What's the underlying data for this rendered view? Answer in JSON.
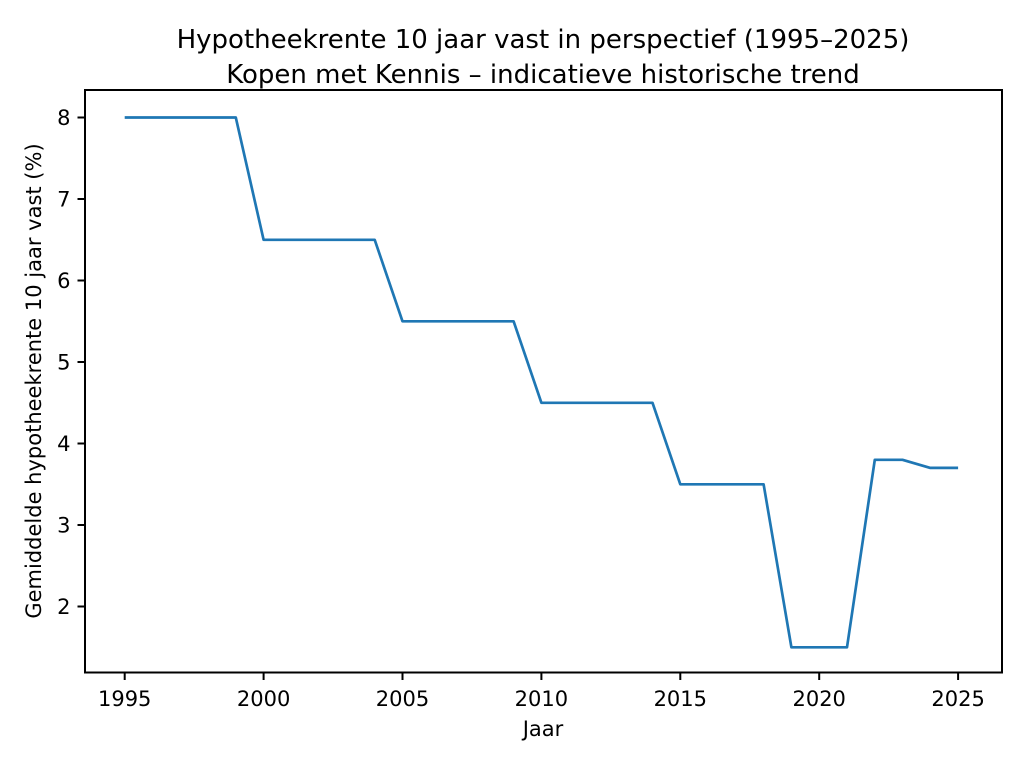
{
  "chart_data": {
    "type": "line",
    "title": "Hypotheekrente 10 jaar vast in perspectief (1995–2025)",
    "subtitle": "Kopen met Kennis – indicatieve historische trend",
    "xlabel": "Jaar",
    "ylabel": "Gemiddelde hypotheekrente 10 jaar vast (%)",
    "x": [
      1995,
      1996,
      1997,
      1998,
      1999,
      2000,
      2001,
      2002,
      2003,
      2004,
      2005,
      2006,
      2007,
      2008,
      2009,
      2010,
      2011,
      2012,
      2013,
      2014,
      2015,
      2016,
      2017,
      2018,
      2019,
      2020,
      2021,
      2022,
      2023,
      2024,
      2025
    ],
    "values": [
      8.0,
      8.0,
      8.0,
      8.0,
      8.0,
      6.5,
      6.5,
      6.5,
      6.5,
      6.5,
      5.5,
      5.5,
      5.5,
      5.5,
      5.5,
      4.5,
      4.5,
      4.5,
      4.5,
      4.5,
      3.5,
      3.5,
      3.5,
      3.5,
      1.5,
      1.5,
      1.5,
      3.8,
      3.8,
      3.7,
      3.7
    ],
    "xticks": [
      1995,
      2000,
      2005,
      2010,
      2015,
      2020,
      2025
    ],
    "yticks": [
      2,
      3,
      4,
      5,
      6,
      7,
      8
    ],
    "xlim": [
      1993.5,
      2026.5
    ],
    "ylim": [
      1.175,
      8.325
    ],
    "line_color": "#1f77b4",
    "axis_color": "#000000",
    "background": "#ffffff",
    "grid": false,
    "legend": "none"
  }
}
